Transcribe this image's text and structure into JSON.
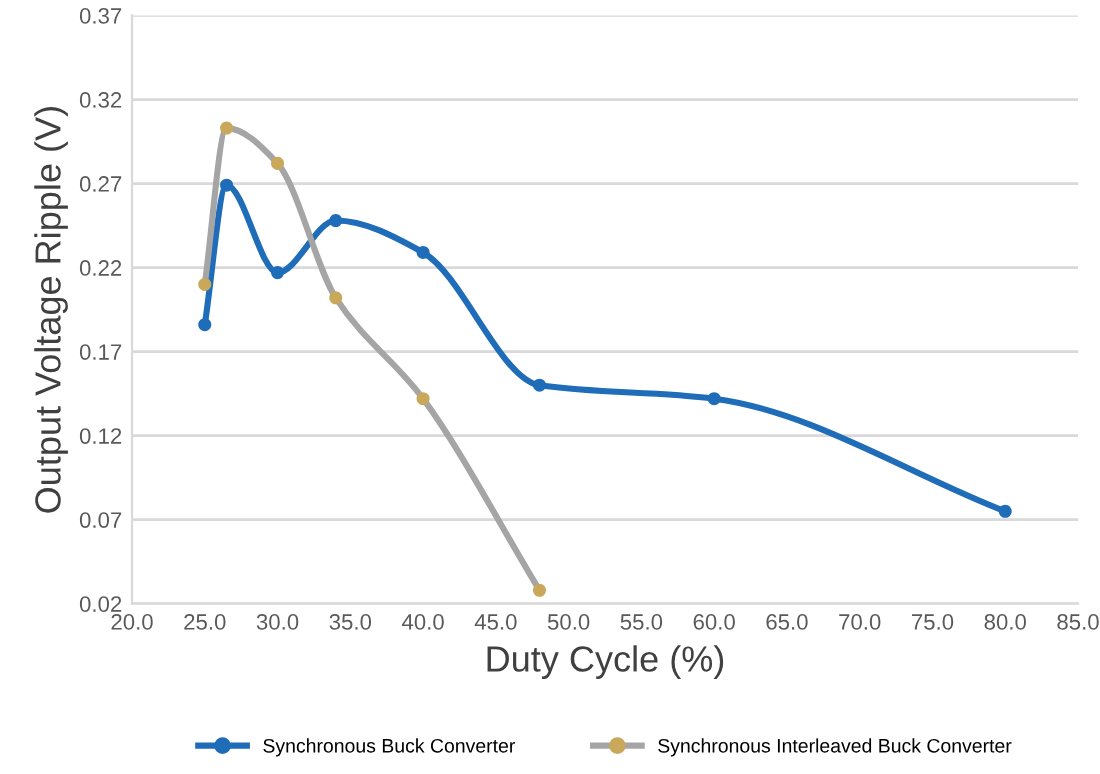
{
  "chart_data": {
    "type": "line",
    "xlabel": "Duty Cycle (%)",
    "ylabel": "Output Voltage Ripple (V)",
    "xlim": [
      20,
      85
    ],
    "xticks": [
      {
        "value": 20,
        "label": "20.0"
      },
      {
        "value": 25,
        "label": "25.0"
      },
      {
        "value": 30,
        "label": "30.0"
      },
      {
        "value": 35,
        "label": "35.0"
      },
      {
        "value": 40,
        "label": "40.0"
      },
      {
        "value": 45,
        "label": "45.0"
      },
      {
        "value": 50,
        "label": "50.0"
      },
      {
        "value": 55,
        "label": "55.0"
      },
      {
        "value": 60,
        "label": "60.0"
      },
      {
        "value": 65,
        "label": "65.0"
      },
      {
        "value": 70,
        "label": "70.0"
      },
      {
        "value": 75,
        "label": "75.0"
      },
      {
        "value": 80,
        "label": "80.0"
      },
      {
        "value": 85,
        "label": "85.0"
      }
    ],
    "ylim": [
      0.02,
      0.37
    ],
    "yticks": [
      0.02,
      0.07,
      0.12,
      0.17,
      0.22,
      0.27,
      0.32,
      0.37
    ],
    "grid": "y",
    "legend": "bottom",
    "marker": "circle",
    "series": [
      {
        "name": "Synchronous Buck Converter",
        "color": "#1f6cb8",
        "x": [
          25,
          26.5,
          30,
          34,
          40,
          48,
          60,
          80
        ],
        "values": [
          0.186,
          0.269,
          0.217,
          0.248,
          0.229,
          0.15,
          0.142,
          0.075
        ]
      },
      {
        "name": "Synchronous Interleaved Buck Converter",
        "color": "#a5a5a5",
        "colors": [
          "#c9a85c",
          "#c9a85c",
          "#c9a85c",
          "#c9a85c",
          "#c9a85c",
          "#c9a85c"
        ],
        "x": [
          25,
          26.5,
          30,
          34,
          40,
          48
        ],
        "values": [
          0.21,
          0.303,
          0.282,
          0.202,
          0.142,
          0.028
        ]
      }
    ]
  }
}
